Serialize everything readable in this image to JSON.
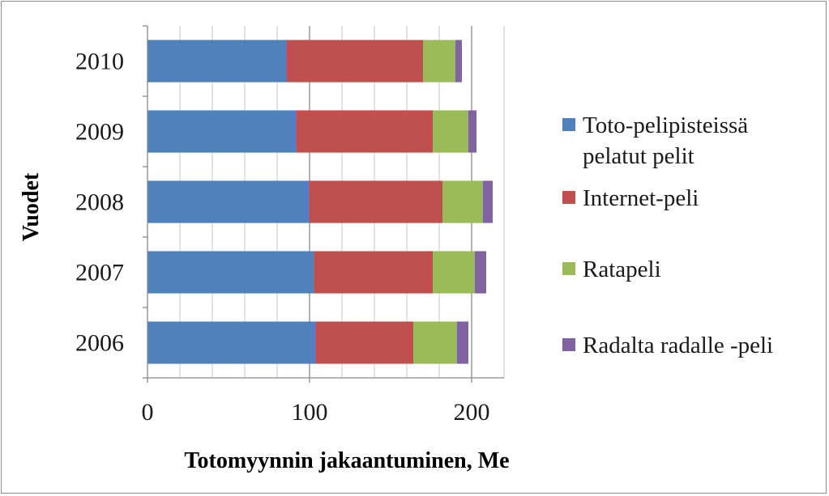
{
  "chart_data": {
    "type": "bar",
    "orientation": "horizontal",
    "stacked": true,
    "categories": [
      "2006",
      "2007",
      "2008",
      "2009",
      "2010"
    ],
    "series": [
      {
        "name": "Toto-pelipisteissä pelatut pelit",
        "name_lines": [
          "Toto-pelipisteissä",
          "pelatut pelit"
        ],
        "color": "#4F81BD",
        "values": [
          104,
          103,
          100,
          92,
          86
        ]
      },
      {
        "name": "Internet-peli",
        "name_lines": [
          "Internet-peli"
        ],
        "color": "#C0504D",
        "values": [
          60,
          73,
          82,
          84,
          84
        ]
      },
      {
        "name": "Ratapeli",
        "name_lines": [
          "Ratapeli"
        ],
        "color": "#9BBB59",
        "values": [
          27,
          26,
          25,
          22,
          20
        ]
      },
      {
        "name": "Radalta radalle -peli",
        "name_lines": [
          "Radalta radalle -peli"
        ],
        "color": "#8064A2",
        "values": [
          7,
          7,
          6,
          5,
          4
        ]
      }
    ],
    "xlabel": "Totomyynnin jakaantuminen, Me",
    "ylabel": "Vuodet",
    "xlim": [
      0,
      220
    ],
    "xticks": [
      0,
      100,
      200
    ],
    "minor_grid_step": 20,
    "grid": true,
    "legend_position": "right"
  }
}
